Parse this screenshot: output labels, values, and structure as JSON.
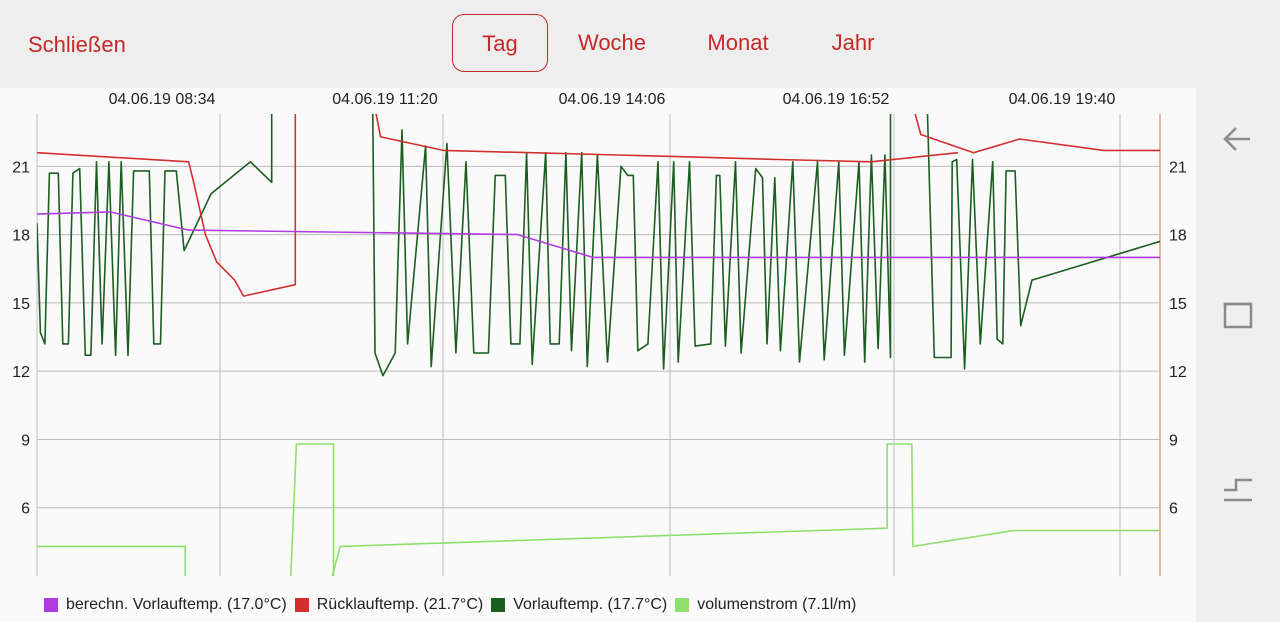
{
  "header": {
    "close_label": "Schließen",
    "tabs": [
      {
        "label": "Tag",
        "active": true
      },
      {
        "label": "Woche",
        "active": false
      },
      {
        "label": "Monat",
        "active": false
      },
      {
        "label": "Jahr",
        "active": false
      }
    ]
  },
  "colors": {
    "accent": "#c62828",
    "calc": "#b03ce0",
    "ruecklauf": "#d32f2f",
    "vorlauf": "#1b5e20",
    "volumen": "#8ee06a"
  },
  "nav": {
    "icons": [
      "back-icon",
      "recent-apps-icon",
      "home-icon"
    ]
  },
  "chart_data": {
    "type": "line",
    "x_ticks": [
      "04.06.19 08:34",
      "04.06.19 11:20",
      "04.06.19 14:06",
      "04.06.19 16:52",
      "04.06.19 19:40"
    ],
    "y_ticks": [
      6,
      9,
      12,
      15,
      18,
      21
    ],
    "ylim": [
      3,
      23.3
    ],
    "xlim": [
      0,
      1000
    ],
    "grid": true,
    "legend_position": "bottom",
    "series": [
      {
        "name": "berechn. Vorlauftemp. (17.0°C)",
        "color": "#b03ce0",
        "points": [
          [
            0,
            18.9
          ],
          [
            65,
            19.0
          ],
          [
            135,
            18.2
          ],
          [
            428,
            18.0
          ],
          [
            495,
            17.0
          ],
          [
            1000,
            17.0
          ]
        ]
      },
      {
        "name": "Rücklauftemp. (21.7°C)",
        "color": "#d32f2f",
        "segments": [
          [
            [
              0,
              21.6
            ],
            [
              135,
              21.2
            ],
            [
              140,
              20.2
            ],
            [
              150,
              18.0
            ],
            [
              160,
              16.8
            ],
            [
              176,
              16.0
            ],
            [
              184,
              15.3
            ],
            [
              230,
              15.8
            ],
            [
              230,
              23.3
            ]
          ],
          [
            [
              302,
              23.3
            ],
            [
              306,
              22.3
            ],
            [
              362,
              21.7
            ],
            [
              590,
              21.4
            ],
            [
              660,
              21.3
            ],
            [
              743,
              21.2
            ],
            [
              820,
              21.6
            ]
          ],
          [
            [
              782,
              23.3
            ],
            [
              787,
              22.4
            ],
            [
              834,
              21.6
            ],
            [
              875,
              22.2
            ],
            [
              950,
              21.7
            ],
            [
              1000,
              21.7
            ]
          ]
        ]
      },
      {
        "name": "Vorlauftemp. (17.7°C)",
        "color": "#1b5e20",
        "segments": [
          [
            [
              0,
              18.5
            ],
            [
              3,
              13.7
            ],
            [
              7,
              13.2
            ],
            [
              11,
              20.7
            ],
            [
              19,
              20.7
            ],
            [
              23,
              13.2
            ],
            [
              28,
              13.2
            ],
            [
              32,
              20.7
            ],
            [
              38,
              20.9
            ],
            [
              43,
              12.7
            ],
            [
              48,
              12.7
            ],
            [
              53,
              21.2
            ],
            [
              58,
              13.2
            ],
            [
              64,
              21.2
            ],
            [
              70,
              12.7
            ],
            [
              75,
              21.2
            ],
            [
              81,
              12.7
            ],
            [
              86,
              20.8
            ],
            [
              100,
              20.8
            ],
            [
              104,
              13.2
            ],
            [
              110,
              13.2
            ],
            [
              114,
              20.8
            ],
            [
              124,
              20.8
            ],
            [
              131,
              17.3
            ],
            [
              155,
              19.8
            ],
            [
              190,
              21.2
            ],
            [
              209,
              20.3
            ],
            [
              209,
              23.3
            ]
          ],
          [
            [
              299,
              23.3
            ],
            [
              301,
              12.8
            ],
            [
              308,
              11.8
            ],
            [
              319,
              12.8
            ],
            [
              325,
              22.6
            ],
            [
              330,
              13.2
            ],
            [
              346,
              21.9
            ],
            [
              351,
              12.2
            ],
            [
              365,
              22.0
            ],
            [
              373,
              12.8
            ],
            [
              382,
              21.2
            ],
            [
              389,
              12.8
            ],
            [
              402,
              12.8
            ],
            [
              408,
              20.6
            ],
            [
              417,
              20.6
            ],
            [
              422,
              13.2
            ],
            [
              430,
              13.2
            ],
            [
              436,
              21.6
            ],
            [
              441,
              12.3
            ],
            [
              453,
              21.6
            ],
            [
              457,
              13.2
            ],
            [
              465,
              13.2
            ],
            [
              471,
              21.6
            ],
            [
              476,
              12.9
            ],
            [
              485,
              21.6
            ],
            [
              490,
              12.2
            ],
            [
              499,
              21.5
            ],
            [
              508,
              12.4
            ],
            [
              520,
              21.0
            ],
            [
              526,
              20.6
            ],
            [
              531,
              20.6
            ],
            [
              535,
              12.9
            ],
            [
              544,
              13.2
            ],
            [
              553,
              21.2
            ],
            [
              558,
              12.1
            ],
            [
              567,
              21.2
            ],
            [
              571,
              12.4
            ],
            [
              581,
              21.2
            ],
            [
              586,
              13.1
            ],
            [
              600,
              13.2
            ],
            [
              605,
              20.6
            ],
            [
              608,
              20.6
            ],
            [
              613,
              13.1
            ],
            [
              622,
              21.2
            ],
            [
              627,
              12.8
            ],
            [
              640,
              20.9
            ],
            [
              646,
              20.5
            ],
            [
              650,
              13.2
            ],
            [
              657,
              20.5
            ],
            [
              662,
              12.9
            ],
            [
              673,
              21.2
            ],
            [
              679,
              12.4
            ],
            [
              695,
              21.2
            ],
            [
              701,
              12.5
            ],
            [
              714,
              21.2
            ],
            [
              719,
              12.7
            ],
            [
              732,
              21.2
            ],
            [
              737,
              12.4
            ],
            [
              743,
              21.5
            ],
            [
              749,
              13.0
            ],
            [
              755,
              21.5
            ],
            [
              760,
              12.6
            ],
            [
              760,
              23.3
            ]
          ],
          [
            [
              793,
              23.3
            ],
            [
              799,
              12.6
            ],
            [
              805,
              12.6
            ],
            [
              812,
              12.6
            ],
            [
              814,
              12.6
            ],
            [
              815,
              21.2
            ],
            [
              819,
              21.3
            ],
            [
              826,
              12.1
            ],
            [
              833,
              21.3
            ],
            [
              840,
              13.2
            ],
            [
              851,
              21.2
            ],
            [
              855,
              13.4
            ],
            [
              860,
              13.2
            ],
            [
              863,
              20.8
            ],
            [
              871,
              20.8
            ],
            [
              876,
              14.0
            ],
            [
              886,
              16.0
            ],
            [
              1000,
              17.7
            ]
          ]
        ]
      },
      {
        "name": "volumenstrom (7.1l/m)",
        "color": "#8ee06a",
        "segments": [
          [
            [
              0,
              4.3
            ],
            [
              132,
              4.3
            ],
            [
              132,
              3.0
            ]
          ],
          [
            [
              226,
              3.0
            ],
            [
              231,
              8.8
            ],
            [
              264,
              8.8
            ],
            [
              264,
              3.0
            ]
          ],
          [
            [
              263,
              3.0
            ],
            [
              270,
              4.3
            ],
            [
              757,
              5.1
            ],
            [
              757,
              8.8
            ],
            [
              779,
              8.8
            ],
            [
              780,
              4.3
            ],
            [
              870,
              5.0
            ],
            [
              890,
              5.0
            ],
            [
              1000,
              5.0
            ],
            [
              1000,
              7.1
            ],
            [
              1040,
              7.1
            ]
          ]
        ]
      }
    ]
  }
}
